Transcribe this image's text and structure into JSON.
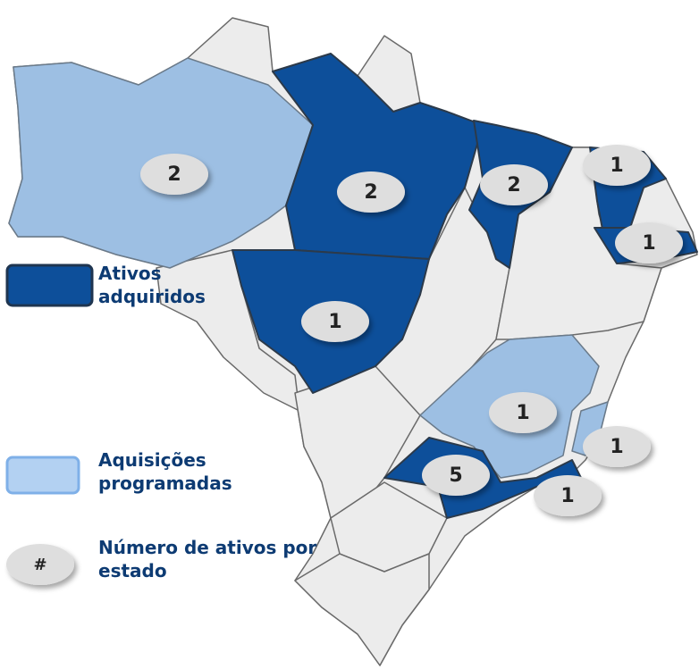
{
  "legend": [
    {
      "label": "Ativos adquiridos"
    },
    {
      "label": "Aquisições programadas"
    },
    {
      "symbol": "#",
      "label": "Número de ativos por estado"
    }
  ],
  "markers": [
    {
      "value": 2
    },
    {
      "value": 2
    },
    {
      "value": 2
    },
    {
      "value": 1
    },
    {
      "value": 1
    },
    {
      "value": 1
    },
    {
      "value": 1
    },
    {
      "value": 1
    },
    {
      "value": 5
    },
    {
      "value": 1
    }
  ]
}
